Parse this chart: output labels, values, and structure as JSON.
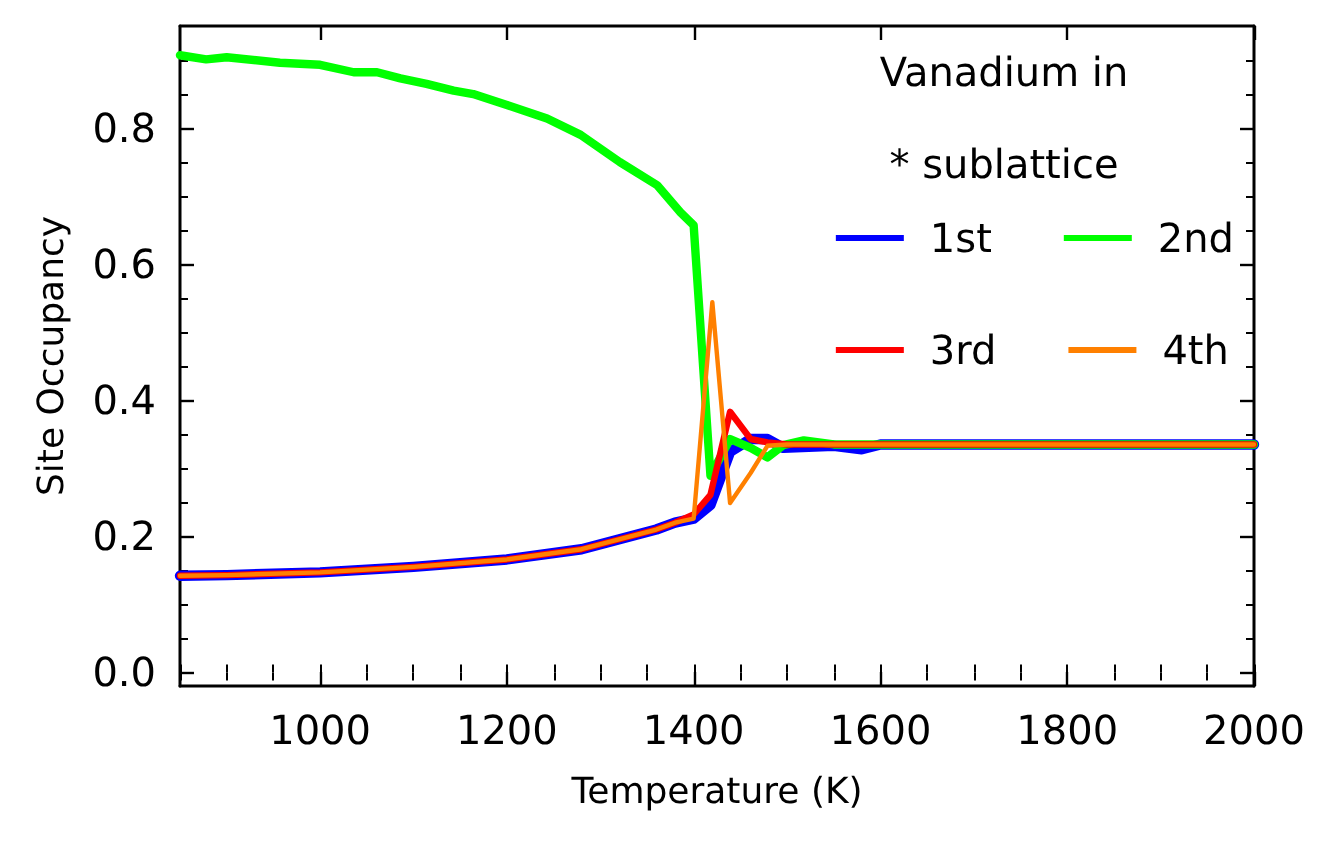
{
  "chart_data": {
    "type": "line",
    "xlabel": "Temperature (K)",
    "ylabel": "Site Occupancy",
    "legend_title": "Vanadium in\n* sublattice",
    "legend": "top right",
    "xlim": [
      850,
      2000
    ],
    "xticks": [
      1000,
      1200,
      1400,
      1600,
      1800,
      2000
    ],
    "ylim": [
      -0.02,
      0.95
    ],
    "yticks": [
      {
        "value": 0,
        "label": "0.0"
      },
      {
        "value": 0.2,
        "label": "0.2"
      },
      {
        "value": 0.4,
        "label": "0.4"
      },
      {
        "value": 0.6,
        "label": "0.6"
      },
      {
        "value": 0.8,
        "label": "0.8"
      }
    ],
    "series": [
      {
        "name": "1st",
        "color": "#0000ff",
        "x": [
          850,
          900,
          1000,
          1100,
          1200,
          1280,
          1360,
          1380,
          1400,
          1418,
          1439,
          1461,
          1479,
          1496,
          1550,
          1580,
          1600,
          1700,
          1800,
          1900,
          2000
        ],
        "values": [
          0.142,
          0.143,
          0.147,
          0.155,
          0.166,
          0.181,
          0.21,
          0.22,
          0.226,
          0.246,
          0.324,
          0.343,
          0.343,
          0.33,
          0.333,
          0.328,
          0.335,
          0.335,
          0.335,
          0.335,
          0.335
        ]
      },
      {
        "name": "2nd",
        "color": "#00ff00",
        "x": [
          850,
          878,
          900,
          957,
          1000,
          1036,
          1061,
          1086,
          1114,
          1143,
          1164,
          1200,
          1243,
          1279,
          1321,
          1361,
          1386,
          1400,
          1418,
          1439,
          1461,
          1479,
          1496,
          1518,
          1550,
          1600,
          1700,
          1800,
          1900,
          2000
        ],
        "values": [
          0.907,
          0.901,
          0.904,
          0.896,
          0.893,
          0.882,
          0.882,
          0.873,
          0.865,
          0.855,
          0.85,
          0.834,
          0.814,
          0.79,
          0.75,
          0.716,
          0.676,
          0.657,
          0.289,
          0.343,
          0.33,
          0.316,
          0.334,
          0.341,
          0.335,
          0.335,
          0.335,
          0.335,
          0.335,
          0.335
        ]
      },
      {
        "name": "3rd",
        "color": "#ff0000",
        "x": [
          850,
          900,
          1000,
          1100,
          1200,
          1280,
          1360,
          1380,
          1400,
          1418,
          1439,
          1461,
          1479,
          1500,
          1600,
          1700,
          1800,
          1900,
          2000
        ],
        "values": [
          0.142,
          0.143,
          0.147,
          0.155,
          0.166,
          0.181,
          0.21,
          0.22,
          0.232,
          0.261,
          0.383,
          0.343,
          0.338,
          0.335,
          0.335,
          0.335,
          0.335,
          0.335,
          0.335
        ]
      },
      {
        "name": "4th",
        "color": "#ff8000",
        "x": [
          850,
          900,
          1000,
          1100,
          1200,
          1280,
          1360,
          1380,
          1400,
          1420,
          1439,
          1461,
          1479,
          1500,
          1600,
          1700,
          1800,
          1900,
          2000
        ],
        "values": [
          0.142,
          0.143,
          0.147,
          0.155,
          0.166,
          0.181,
          0.21,
          0.22,
          0.226,
          0.544,
          0.249,
          0.293,
          0.333,
          0.335,
          0.335,
          0.335,
          0.335,
          0.335,
          0.335
        ]
      }
    ]
  }
}
